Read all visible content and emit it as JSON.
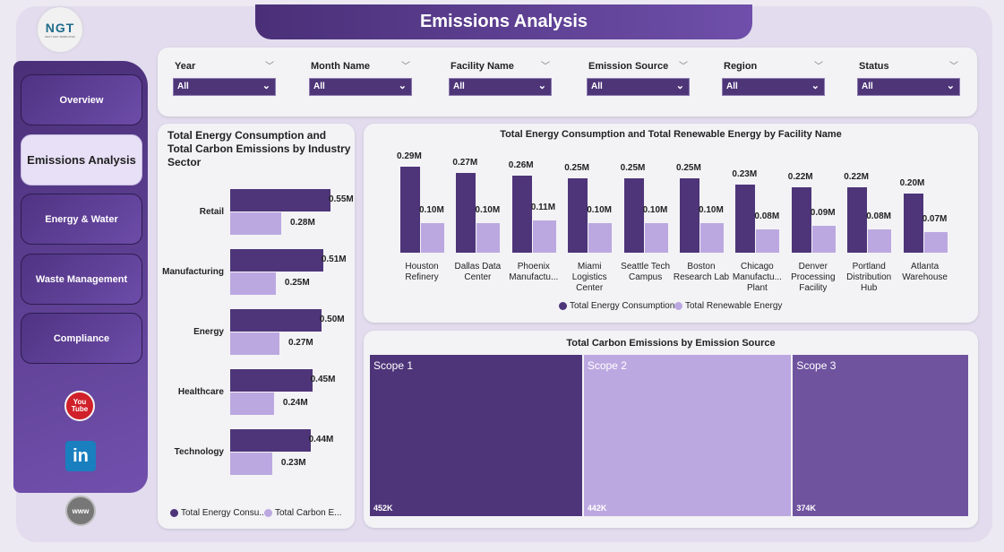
{
  "header": {
    "title": "Emissions Analysis",
    "logo_text": "NGT",
    "logo_sub": "NEXT GEN TEMPLATES"
  },
  "sidebar": {
    "items": [
      {
        "label": "Overview"
      },
      {
        "label": "Emissions Analysis",
        "active": true
      },
      {
        "label": "Energy & Water"
      },
      {
        "label": "Waste Management"
      },
      {
        "label": "Compliance"
      }
    ],
    "social": {
      "youtube": "You Tube",
      "linkedin": "in",
      "web": "www"
    }
  },
  "filters": [
    {
      "label": "Year",
      "value": "All"
    },
    {
      "label": "Month Name",
      "value": "All"
    },
    {
      "label": "Facility Name",
      "value": "All"
    },
    {
      "label": "Emission Source",
      "value": "All"
    },
    {
      "label": "Region",
      "value": "All"
    },
    {
      "label": "Status",
      "value": "All"
    }
  ],
  "colors": {
    "primary": "#4e3579",
    "secondary": "#bca8e0",
    "scope3": "#6f539f"
  },
  "chart_data": [
    {
      "type": "bar",
      "orientation": "horizontal",
      "title": "Total Energy Consumption and Total Carbon Emissions by Industry Sector",
      "categories": [
        "Retail",
        "Manufacturing",
        "Energy",
        "Healthcare",
        "Technology"
      ],
      "series": [
        {
          "name": "Total Energy Consu...",
          "values": [
            0.55,
            0.51,
            0.5,
            0.45,
            0.44
          ],
          "labels": [
            "0.55M",
            "0.51M",
            "0.50M",
            "0.45M",
            "0.44M"
          ]
        },
        {
          "name": "Total Carbon E...",
          "values": [
            0.28,
            0.25,
            0.27,
            0.24,
            0.23
          ],
          "labels": [
            "0.28M",
            "0.25M",
            "0.27M",
            "0.24M",
            "0.23M"
          ]
        }
      ],
      "legend": "bottom"
    },
    {
      "type": "bar",
      "title": "Total Energy Consumption and Total Renewable Energy by Facility Name",
      "categories": [
        "Houston Refinery",
        "Dallas Data Center",
        "Phoenix Manufactu...",
        "Miami Logistics Center",
        "Seattle Tech Campus",
        "Boston Research Lab",
        "Chicago Manufactu... Plant",
        "Denver Processing Facility",
        "Portland Distribution Hub",
        "Atlanta Warehouse"
      ],
      "series": [
        {
          "name": "Total Energy Consumption",
          "values": [
            0.29,
            0.27,
            0.26,
            0.25,
            0.25,
            0.25,
            0.23,
            0.22,
            0.22,
            0.2
          ],
          "labels": [
            "0.29M",
            "0.27M",
            "0.26M",
            "0.25M",
            "0.25M",
            "0.25M",
            "0.23M",
            "0.22M",
            "0.22M",
            "0.20M"
          ]
        },
        {
          "name": "Total Renewable Energy",
          "values": [
            0.1,
            0.1,
            0.11,
            0.1,
            0.1,
            0.1,
            0.08,
            0.09,
            0.08,
            0.07
          ],
          "labels": [
            "0.10M",
            "0.10M",
            "0.11M",
            "0.10M",
            "0.10M",
            "0.10M",
            "0.08M",
            "0.09M",
            "0.08M",
            "0.07M"
          ]
        }
      ],
      "legend": "bottom"
    },
    {
      "type": "treemap",
      "title": "Total Carbon Emissions by Emission Source",
      "items": [
        {
          "name": "Scope 1",
          "value": 452,
          "label": "452K"
        },
        {
          "name": "Scope 2",
          "value": 442,
          "label": "442K"
        },
        {
          "name": "Scope 3",
          "value": 374,
          "label": "374K"
        }
      ]
    }
  ]
}
